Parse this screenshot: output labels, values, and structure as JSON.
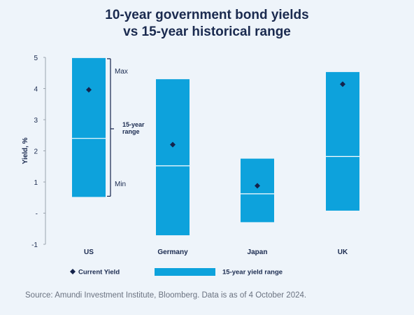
{
  "title_line1": "10-year government bond yields",
  "title_line2": "vs 15-year historical range",
  "source": "Source: Amundi Investment  Institute,  Bloomberg. Data is as of 4 October 2024.",
  "colors": {
    "range": "#0da2dc",
    "marker": "#14234b",
    "text": "#1a2a4f"
  },
  "chart_data": {
    "type": "bar",
    "title": "10-year government bond yields vs 15-year historical range",
    "ylabel": "Yield, %",
    "ylim": [
      -1,
      5
    ],
    "yticks": [
      {
        "value": 5,
        "label": "5"
      },
      {
        "value": 4,
        "label": "4"
      },
      {
        "value": 3,
        "label": "3"
      },
      {
        "value": 2,
        "label": "2"
      },
      {
        "value": 1,
        "label": "1"
      },
      {
        "value": 0,
        "label": "-"
      },
      {
        "value": -1,
        "label": "-1"
      }
    ],
    "categories": [
      "US",
      "Germany",
      "Japan",
      "UK"
    ],
    "series": [
      {
        "name": "15-year yield range",
        "min": [
          0.52,
          -0.71,
          -0.29,
          0.08
        ],
        "max": [
          4.98,
          4.3,
          1.75,
          4.53
        ],
        "median": [
          2.4,
          1.52,
          0.62,
          1.82
        ]
      },
      {
        "name": "Current Yield",
        "values": [
          3.96,
          2.2,
          0.88,
          4.14
        ]
      }
    ],
    "annotations": {
      "max": "Max",
      "min": "Min",
      "range_line1": "15-year",
      "range_line2": "range"
    },
    "legend": {
      "position": "bottom",
      "marker_label": "Current Yield",
      "range_label": "15-year yield  range"
    }
  }
}
